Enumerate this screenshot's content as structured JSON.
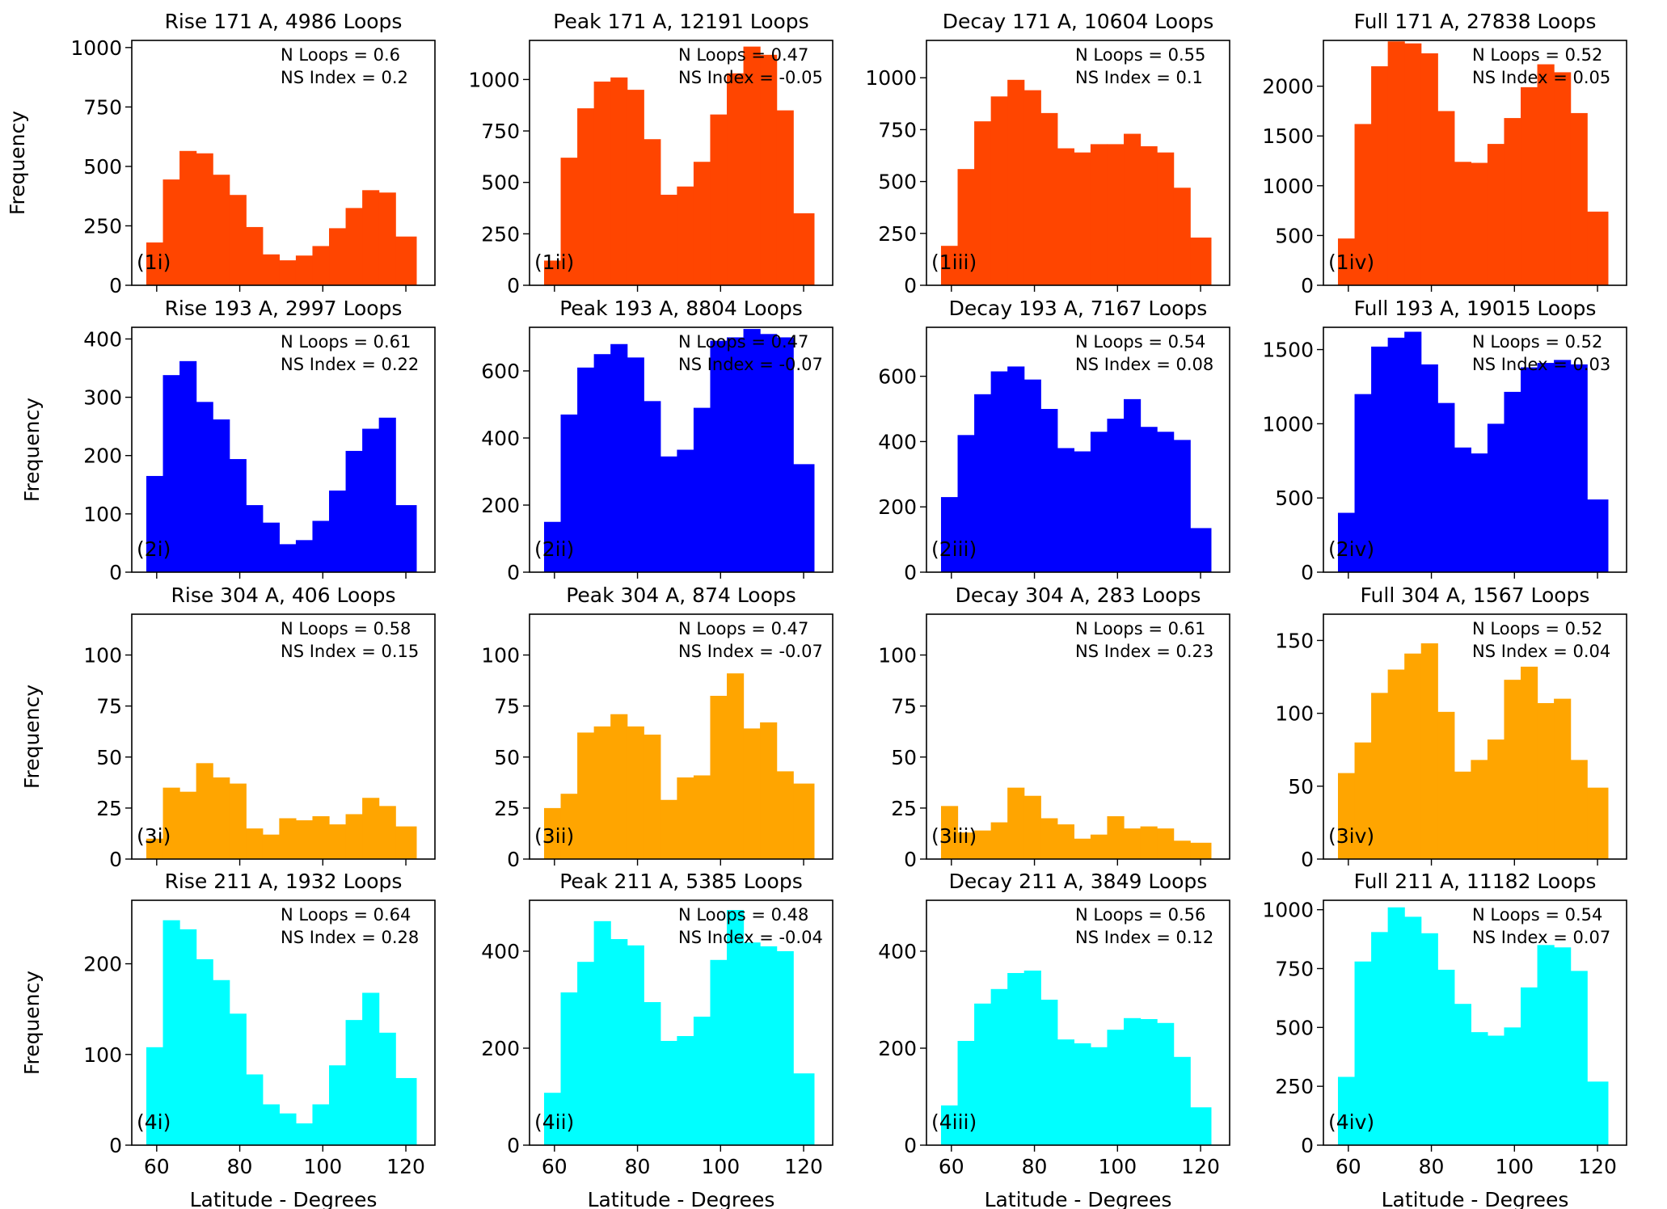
{
  "figure": {
    "ylabel": "Frequency",
    "xlabel": "Latitude - Degrees",
    "colors": [
      "#ff4500",
      "#0000ff",
      "#ffa500",
      "#00ffff"
    ]
  },
  "chart_data": [
    {
      "type": "bar",
      "title": "Rise 171 A, 4986 Loops",
      "panel_label": "(1i)",
      "annotation": [
        "N Loops = 0.6",
        "NS Index = 0.2"
      ],
      "xlim": [
        54,
        127
      ],
      "xticks": [],
      "ylim": [
        0,
        1030
      ],
      "yticks": [
        0,
        250,
        500,
        750,
        1000
      ],
      "ylabel": "Frequency",
      "bin_edges": [
        57.5,
        61.5,
        65.5,
        69.5,
        73.5,
        77.5,
        81.5,
        85.5,
        89.5,
        93.5,
        97.5,
        101.5,
        105.5,
        109.5,
        113.5,
        117.5,
        122.5
      ],
      "values": [
        180,
        445,
        565,
        555,
        465,
        380,
        245,
        130,
        105,
        125,
        165,
        240,
        325,
        400,
        390,
        205
      ]
    },
    {
      "type": "bar",
      "title": "Peak 171 A, 12191 Loops",
      "panel_label": "(1ii)",
      "annotation": [
        "N Loops = 0.47",
        "NS Index = -0.05"
      ],
      "xlim": [
        54,
        127
      ],
      "xticks": [],
      "ylim": [
        0,
        1190
      ],
      "yticks": [
        0,
        250,
        500,
        750,
        1000
      ],
      "bin_edges": [
        57.5,
        61.5,
        65.5,
        69.5,
        73.5,
        77.5,
        81.5,
        85.5,
        89.5,
        93.5,
        97.5,
        101.5,
        105.5,
        109.5,
        113.5,
        117.5,
        122.5
      ],
      "values": [
        120,
        620,
        860,
        990,
        1010,
        950,
        710,
        440,
        480,
        600,
        830,
        1030,
        1160,
        1120,
        850,
        350
      ]
    },
    {
      "type": "bar",
      "title": "Decay 171 A, 10604 Loops",
      "panel_label": "(1iii)",
      "annotation": [
        "N Loops = 0.55",
        "NS Index = 0.1"
      ],
      "xlim": [
        54,
        127
      ],
      "xticks": [],
      "ylim": [
        0,
        1180
      ],
      "yticks": [
        0,
        250,
        500,
        750,
        1000
      ],
      "bin_edges": [
        57.5,
        61.5,
        65.5,
        69.5,
        73.5,
        77.5,
        81.5,
        85.5,
        89.5,
        93.5,
        97.5,
        101.5,
        105.5,
        109.5,
        113.5,
        117.5,
        122.5
      ],
      "values": [
        190,
        560,
        790,
        910,
        990,
        940,
        830,
        660,
        640,
        680,
        680,
        730,
        670,
        640,
        470,
        230
      ]
    },
    {
      "type": "bar",
      "title": "Full 171 A, 27838 Loops",
      "panel_label": "(1iv)",
      "annotation": [
        "N Loops = 0.52",
        "NS Index = 0.05"
      ],
      "xlim": [
        54,
        127
      ],
      "xticks": [],
      "ylim": [
        0,
        2460
      ],
      "yticks": [
        0,
        500,
        1000,
        1500,
        2000
      ],
      "bin_edges": [
        57.5,
        61.5,
        65.5,
        69.5,
        73.5,
        77.5,
        81.5,
        85.5,
        89.5,
        93.5,
        97.5,
        101.5,
        105.5,
        109.5,
        113.5,
        117.5,
        122.5
      ],
      "values": [
        470,
        1620,
        2200,
        2450,
        2430,
        2330,
        1750,
        1240,
        1230,
        1420,
        1680,
        1990,
        2220,
        2140,
        1730,
        740
      ]
    },
    {
      "type": "bar",
      "title": "Rise 193 A, 2997 Loops",
      "panel_label": "(2i)",
      "annotation": [
        "N Loops = 0.61",
        "NS Index = 0.22"
      ],
      "xlim": [
        54,
        127
      ],
      "xticks": [],
      "ylim": [
        0,
        420
      ],
      "yticks": [
        0,
        100,
        200,
        300,
        400
      ],
      "ylabel": "Frequency",
      "bin_edges": [
        57.5,
        61.5,
        65.5,
        69.5,
        73.5,
        77.5,
        81.5,
        85.5,
        89.5,
        93.5,
        97.5,
        101.5,
        105.5,
        109.5,
        113.5,
        117.5,
        122.5
      ],
      "values": [
        165,
        338,
        362,
        292,
        262,
        194,
        115,
        85,
        48,
        55,
        88,
        140,
        208,
        246,
        265,
        115
      ]
    },
    {
      "type": "bar",
      "title": "Peak 193 A, 8804 Loops",
      "panel_label": "(2ii)",
      "annotation": [
        "N Loops = 0.47",
        "NS Index = -0.07"
      ],
      "xlim": [
        54,
        127
      ],
      "xticks": [],
      "ylim": [
        0,
        730
      ],
      "yticks": [
        0,
        200,
        400,
        600
      ],
      "bin_edges": [
        57.5,
        61.5,
        65.5,
        69.5,
        73.5,
        77.5,
        81.5,
        85.5,
        89.5,
        93.5,
        97.5,
        101.5,
        105.5,
        109.5,
        113.5,
        117.5,
        122.5
      ],
      "values": [
        150,
        470,
        610,
        650,
        680,
        640,
        510,
        345,
        365,
        490,
        690,
        700,
        725,
        710,
        700,
        322
      ]
    },
    {
      "type": "bar",
      "title": "Decay 193 A, 7167 Loops",
      "panel_label": "(2iii)",
      "annotation": [
        "N Loops = 0.54",
        "NS Index = 0.08"
      ],
      "xlim": [
        54,
        127
      ],
      "xticks": [],
      "ylim": [
        0,
        750
      ],
      "yticks": [
        0,
        200,
        400,
        600
      ],
      "bin_edges": [
        57.5,
        61.5,
        65.5,
        69.5,
        73.5,
        77.5,
        81.5,
        85.5,
        89.5,
        93.5,
        97.5,
        101.5,
        105.5,
        109.5,
        113.5,
        117.5,
        122.5
      ],
      "values": [
        230,
        420,
        545,
        615,
        630,
        590,
        500,
        380,
        370,
        430,
        470,
        530,
        445,
        430,
        405,
        135
      ]
    },
    {
      "type": "bar",
      "title": "Full 193 A, 19015 Loops",
      "panel_label": "(2iv)",
      "annotation": [
        "N Loops = 0.52",
        "NS Index = 0.03"
      ],
      "xlim": [
        54,
        127
      ],
      "xticks": [],
      "ylim": [
        0,
        1650
      ],
      "yticks": [
        0,
        500,
        1000,
        1500
      ],
      "bin_edges": [
        57.5,
        61.5,
        65.5,
        69.5,
        73.5,
        77.5,
        81.5,
        85.5,
        89.5,
        93.5,
        97.5,
        101.5,
        105.5,
        109.5,
        113.5,
        117.5,
        122.5
      ],
      "values": [
        400,
        1200,
        1520,
        1580,
        1620,
        1400,
        1140,
        840,
        800,
        1000,
        1215,
        1380,
        1410,
        1430,
        1400,
        490
      ]
    },
    {
      "type": "bar",
      "title": "Rise 304 A, 406 Loops",
      "panel_label": "(3i)",
      "annotation": [
        "N Loops = 0.58",
        "NS Index = 0.15"
      ],
      "xlim": [
        54,
        127
      ],
      "xticks": [],
      "ylim": [
        0,
        120
      ],
      "yticks": [
        0,
        25,
        50,
        75,
        100
      ],
      "ylabel": "Frequency",
      "bin_edges": [
        57.5,
        61.5,
        65.5,
        69.5,
        73.5,
        77.5,
        81.5,
        85.5,
        89.5,
        93.5,
        97.5,
        101.5,
        105.5,
        109.5,
        113.5,
        117.5,
        122.5
      ],
      "values": [
        10,
        35,
        33,
        47,
        40,
        37,
        15,
        12,
        20,
        19,
        21,
        17,
        22,
        30,
        26,
        16
      ]
    },
    {
      "type": "bar",
      "title": "Peak 304 A, 874 Loops",
      "panel_label": "(3ii)",
      "annotation": [
        "N Loops = 0.47",
        "NS Index = -0.07"
      ],
      "xlim": [
        54,
        127
      ],
      "xticks": [],
      "ylim": [
        0,
        120
      ],
      "yticks": [
        0,
        25,
        50,
        75,
        100
      ],
      "bin_edges": [
        57.5,
        61.5,
        65.5,
        69.5,
        73.5,
        77.5,
        81.5,
        85.5,
        89.5,
        93.5,
        97.5,
        101.5,
        105.5,
        109.5,
        113.5,
        117.5,
        122.5
      ],
      "values": [
        25,
        32,
        62,
        65,
        71,
        65,
        61,
        29,
        40,
        41,
        80,
        91,
        64,
        67,
        43,
        37
      ]
    },
    {
      "type": "bar",
      "title": "Decay 304 A, 283 Loops",
      "panel_label": "(3iii)",
      "annotation": [
        "N Loops = 0.61",
        "NS Index = 0.23"
      ],
      "xlim": [
        54,
        127
      ],
      "xticks": [],
      "ylim": [
        0,
        120
      ],
      "yticks": [
        0,
        25,
        50,
        75,
        100
      ],
      "bin_edges": [
        57.5,
        61.5,
        65.5,
        69.5,
        73.5,
        77.5,
        81.5,
        85.5,
        89.5,
        93.5,
        97.5,
        101.5,
        105.5,
        109.5,
        113.5,
        117.5,
        122.5
      ],
      "values": [
        26,
        13,
        14,
        18,
        35,
        31,
        20,
        17,
        10,
        12,
        21,
        15,
        16,
        15,
        9,
        8
      ]
    },
    {
      "type": "bar",
      "title": "Full 304 A, 1567 Loops",
      "panel_label": "(3iv)",
      "annotation": [
        "N Loops = 0.52",
        "NS Index = 0.04"
      ],
      "xlim": [
        54,
        127
      ],
      "xticks": [],
      "ylim": [
        0,
        168
      ],
      "yticks": [
        0,
        50,
        100,
        150
      ],
      "bin_edges": [
        57.5,
        61.5,
        65.5,
        69.5,
        73.5,
        77.5,
        81.5,
        85.5,
        89.5,
        93.5,
        97.5,
        101.5,
        105.5,
        109.5,
        113.5,
        117.5,
        122.5
      ],
      "values": [
        59,
        80,
        114,
        130,
        141,
        148,
        101,
        60,
        68,
        82,
        123,
        132,
        107,
        110,
        68,
        49
      ]
    },
    {
      "type": "bar",
      "title": "Rise 211 A, 1932 Loops",
      "panel_label": "(4i)",
      "annotation": [
        "N Loops = 0.64",
        "NS Index = 0.28"
      ],
      "xlim": [
        54,
        127
      ],
      "xticks": [
        60,
        80,
        100,
        120
      ],
      "ylim": [
        0,
        270
      ],
      "yticks": [
        0,
        100,
        200
      ],
      "ylabel": "Frequency",
      "xlabel": "Latitude - Degrees",
      "bin_edges": [
        57.5,
        61.5,
        65.5,
        69.5,
        73.5,
        77.5,
        81.5,
        85.5,
        89.5,
        93.5,
        97.5,
        101.5,
        105.5,
        109.5,
        113.5,
        117.5,
        122.5
      ],
      "values": [
        108,
        248,
        238,
        205,
        182,
        145,
        78,
        45,
        35,
        24,
        45,
        88,
        138,
        168,
        124,
        74
      ]
    },
    {
      "type": "bar",
      "title": "Peak 211 A, 5385 Loops",
      "panel_label": "(4ii)",
      "annotation": [
        "N Loops = 0.48",
        "NS Index = -0.04"
      ],
      "xlim": [
        54,
        127
      ],
      "xticks": [
        60,
        80,
        100,
        120
      ],
      "ylim": [
        0,
        505
      ],
      "yticks": [
        0,
        200,
        400
      ],
      "xlabel": "Latitude - Degrees",
      "bin_edges": [
        57.5,
        61.5,
        65.5,
        69.5,
        73.5,
        77.5,
        81.5,
        85.5,
        89.5,
        93.5,
        97.5,
        101.5,
        105.5,
        109.5,
        113.5,
        117.5,
        122.5
      ],
      "values": [
        108,
        315,
        378,
        462,
        425,
        412,
        295,
        215,
        225,
        265,
        382,
        485,
        418,
        410,
        400,
        148
      ]
    },
    {
      "type": "bar",
      "title": "Decay 211 A, 3849 Loops",
      "panel_label": "(4iii)",
      "annotation": [
        "N Loops = 0.56",
        "NS Index = 0.12"
      ],
      "xlim": [
        54,
        127
      ],
      "xticks": [
        60,
        80,
        100,
        120
      ],
      "ylim": [
        0,
        505
      ],
      "yticks": [
        0,
        200,
        400
      ],
      "xlabel": "Latitude - Degrees",
      "bin_edges": [
        57.5,
        61.5,
        65.5,
        69.5,
        73.5,
        77.5,
        81.5,
        85.5,
        89.5,
        93.5,
        97.5,
        101.5,
        105.5,
        109.5,
        113.5,
        117.5,
        122.5
      ],
      "values": [
        82,
        215,
        292,
        322,
        355,
        360,
        300,
        218,
        210,
        202,
        238,
        262,
        260,
        252,
        182,
        78
      ]
    },
    {
      "type": "bar",
      "title": "Full 211 A, 11182 Loops",
      "panel_label": "(4iv)",
      "annotation": [
        "N Loops = 0.54",
        "NS Index = 0.07"
      ],
      "xlim": [
        54,
        127
      ],
      "xticks": [
        60,
        80,
        100,
        120
      ],
      "ylim": [
        0,
        1040
      ],
      "yticks": [
        0,
        250,
        500,
        750,
        1000
      ],
      "xlabel": "Latitude - Degrees",
      "bin_edges": [
        57.5,
        61.5,
        65.5,
        69.5,
        73.5,
        77.5,
        81.5,
        85.5,
        89.5,
        93.5,
        97.5,
        101.5,
        105.5,
        109.5,
        113.5,
        117.5,
        122.5
      ],
      "values": [
        290,
        780,
        905,
        1010,
        970,
        900,
        745,
        600,
        480,
        465,
        500,
        670,
        850,
        840,
        740,
        270
      ]
    }
  ]
}
